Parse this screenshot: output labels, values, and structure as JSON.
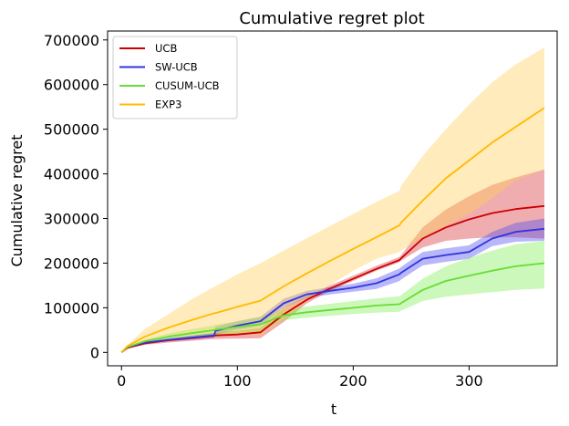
{
  "chart_data": {
    "type": "line",
    "title": "Cumulative regret plot",
    "xlabel": "t",
    "ylabel": "Cumulative regret",
    "xlim": [
      -12,
      376
    ],
    "ylim": [
      -30000,
      720000
    ],
    "xticks": [
      0,
      100,
      200,
      300
    ],
    "yticks": [
      0,
      100000,
      200000,
      300000,
      400000,
      500000,
      600000,
      700000
    ],
    "xtick_labels": [
      "0",
      "100",
      "200",
      "300"
    ],
    "ytick_labels": [
      "0",
      "100000",
      "200000",
      "300000",
      "400000",
      "500000",
      "600000",
      "700000"
    ],
    "legend_position": "top-left",
    "grid": false,
    "x": [
      0,
      5,
      20,
      40,
      60,
      80,
      81,
      100,
      120,
      140,
      160,
      180,
      200,
      220,
      240,
      241,
      260,
      280,
      300,
      320,
      340,
      365
    ],
    "series": [
      {
        "name": "UCB",
        "color": "#cc0000",
        "fill": "#d9323a",
        "values": [
          0,
          10000,
          20000,
          27000,
          32000,
          37000,
          38000,
          40000,
          45000,
          85000,
          118000,
          143000,
          165000,
          187000,
          207000,
          210000,
          255000,
          280000,
          298000,
          312000,
          321000,
          328000
        ],
        "lower": [
          0,
          9000,
          17000,
          22000,
          26000,
          30000,
          30000,
          31000,
          32000,
          68000,
          110000,
          138000,
          160000,
          183000,
          202000,
          205000,
          235000,
          250000,
          255000,
          258000,
          258000,
          255000
        ],
        "upper": [
          0,
          11000,
          23000,
          32000,
          38000,
          44000,
          46000,
          48000,
          55000,
          100000,
          126000,
          150000,
          172000,
          194000,
          214000,
          217000,
          280000,
          320000,
          350000,
          375000,
          392000,
          410000
        ]
      },
      {
        "name": "SW-UCB",
        "color": "#3333dd",
        "fill": "#4a4af0",
        "values": [
          0,
          12000,
          22000,
          28000,
          33000,
          38000,
          48000,
          60000,
          70000,
          110000,
          130000,
          138000,
          145000,
          155000,
          175000,
          178000,
          210000,
          218000,
          225000,
          255000,
          270000,
          277000
        ],
        "lower": [
          0,
          11000,
          20000,
          25000,
          29000,
          33000,
          40000,
          51000,
          60000,
          100000,
          122000,
          130000,
          136000,
          142000,
          160000,
          163000,
          195000,
          203000,
          210000,
          238000,
          248000,
          250000
        ],
        "upper": [
          0,
          13000,
          24000,
          31000,
          37000,
          43000,
          58000,
          70000,
          80000,
          120000,
          138000,
          146000,
          154000,
          166000,
          188000,
          191000,
          225000,
          233000,
          240000,
          270000,
          290000,
          300000
        ]
      },
      {
        "name": "CUSUM-UCB",
        "color": "#66dd33",
        "fill": "#80ee55",
        "values": [
          0,
          12000,
          25000,
          35000,
          43000,
          50000,
          51000,
          57000,
          63000,
          83000,
          90000,
          95000,
          100000,
          105000,
          108000,
          110000,
          140000,
          160000,
          172000,
          183000,
          193000,
          200000
        ],
        "lower": [
          0,
          11000,
          21000,
          28000,
          34000,
          39000,
          40000,
          43000,
          46000,
          72000,
          78000,
          82000,
          86000,
          89000,
          91000,
          93000,
          115000,
          125000,
          130000,
          135000,
          140000,
          143000
        ],
        "upper": [
          0,
          13000,
          29000,
          42000,
          52000,
          61000,
          62000,
          70000,
          80000,
          95000,
          103000,
          109000,
          115000,
          121000,
          126000,
          128000,
          165000,
          193000,
          212000,
          228000,
          242000,
          250000
        ]
      },
      {
        "name": "EXP3",
        "color": "#ffbb00",
        "fill": "#ffcc55",
        "values": [
          0,
          14000,
          35000,
          55000,
          72000,
          88000,
          88000,
          102000,
          116000,
          148000,
          177000,
          205000,
          232000,
          258000,
          285000,
          290000,
          340000,
          390000,
          430000,
          470000,
          505000,
          548000
        ],
        "lower": [
          0,
          12000,
          25000,
          33000,
          39000,
          43000,
          43000,
          40000,
          38000,
          75000,
          113000,
          151000,
          183000,
          210000,
          225000,
          228000,
          255000,
          282000,
          310000,
          345000,
          385000,
          410000
        ],
        "upper": [
          0,
          16000,
          52000,
          85000,
          118000,
          147000,
          148000,
          175000,
          200000,
          228000,
          256000,
          283000,
          310000,
          337000,
          362000,
          372000,
          440000,
          500000,
          555000,
          605000,
          645000,
          683000
        ]
      }
    ]
  }
}
